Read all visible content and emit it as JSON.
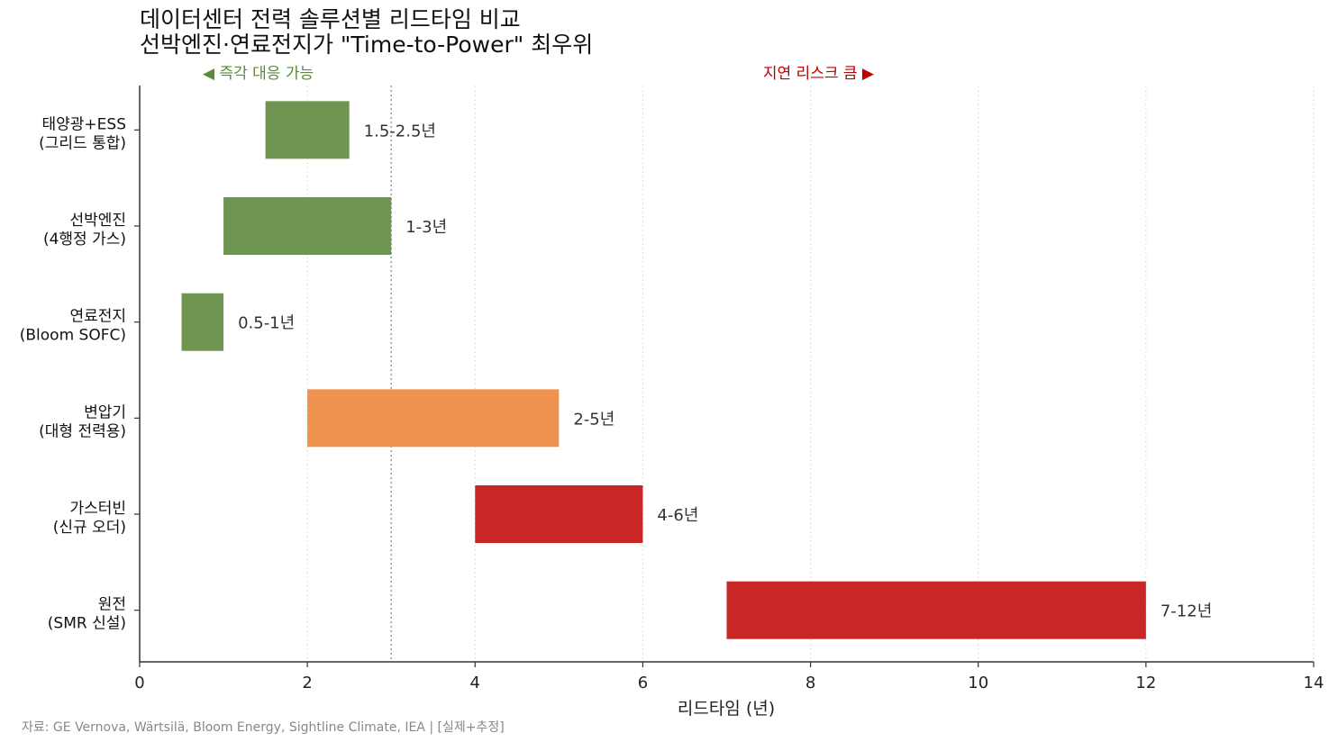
{
  "chart_data": {
    "type": "bar",
    "orientation": "horizontal-range",
    "title": "데이터센터 전력 솔루션별 리드타임 비교",
    "subtitle": "선박엔진·연료전지가 \"Time-to-Power\" 최우위",
    "xlabel": "리드타임 (년)",
    "ylabel": "",
    "xlim": [
      0,
      14
    ],
    "xticks": [
      "0",
      "2",
      "4",
      "6",
      "8",
      "10",
      "12",
      "14"
    ],
    "grid": "x-dotted",
    "reference_line": 3,
    "categories": [
      {
        "line1": "태양광+ESS",
        "line2": "(그리드 통합)"
      },
      {
        "line1": "선박엔진",
        "line2": "(4행정 가스)"
      },
      {
        "line1": "연료전지",
        "line2": "(Bloom SOFC)"
      },
      {
        "line1": "변압기",
        "line2": "(대형 전력용)"
      },
      {
        "line1": "가스터빈",
        "line2": "(신규 오더)"
      },
      {
        "line1": "원전",
        "line2": "(SMR 신설)"
      }
    ],
    "ranges": [
      {
        "start": 1.5,
        "end": 2.5,
        "label": "1.5-2.5년",
        "color": "#6e9552"
      },
      {
        "start": 1,
        "end": 3,
        "label": "1-3년",
        "color": "#6e9552"
      },
      {
        "start": 0.5,
        "end": 1,
        "label": "0.5-1년",
        "color": "#6e9552"
      },
      {
        "start": 2,
        "end": 5,
        "label": "2-5년",
        "color": "#ef914f"
      },
      {
        "start": 4,
        "end": 6,
        "label": "4-6년",
        "color": "#c92726"
      },
      {
        "start": 7,
        "end": 12,
        "label": "7-12년",
        "color": "#c92726"
      }
    ],
    "annotations": {
      "left": {
        "text": "◀ 즉각 대응 가능",
        "color": "#5a8a3a"
      },
      "right": {
        "text": "지연 리스크 큼 ▶",
        "color": "#c00000"
      }
    },
    "source": "자료: GE Vernova, Wärtsilä, Bloom Energy, Sightline Climate, IEA | [실제+추정]"
  }
}
